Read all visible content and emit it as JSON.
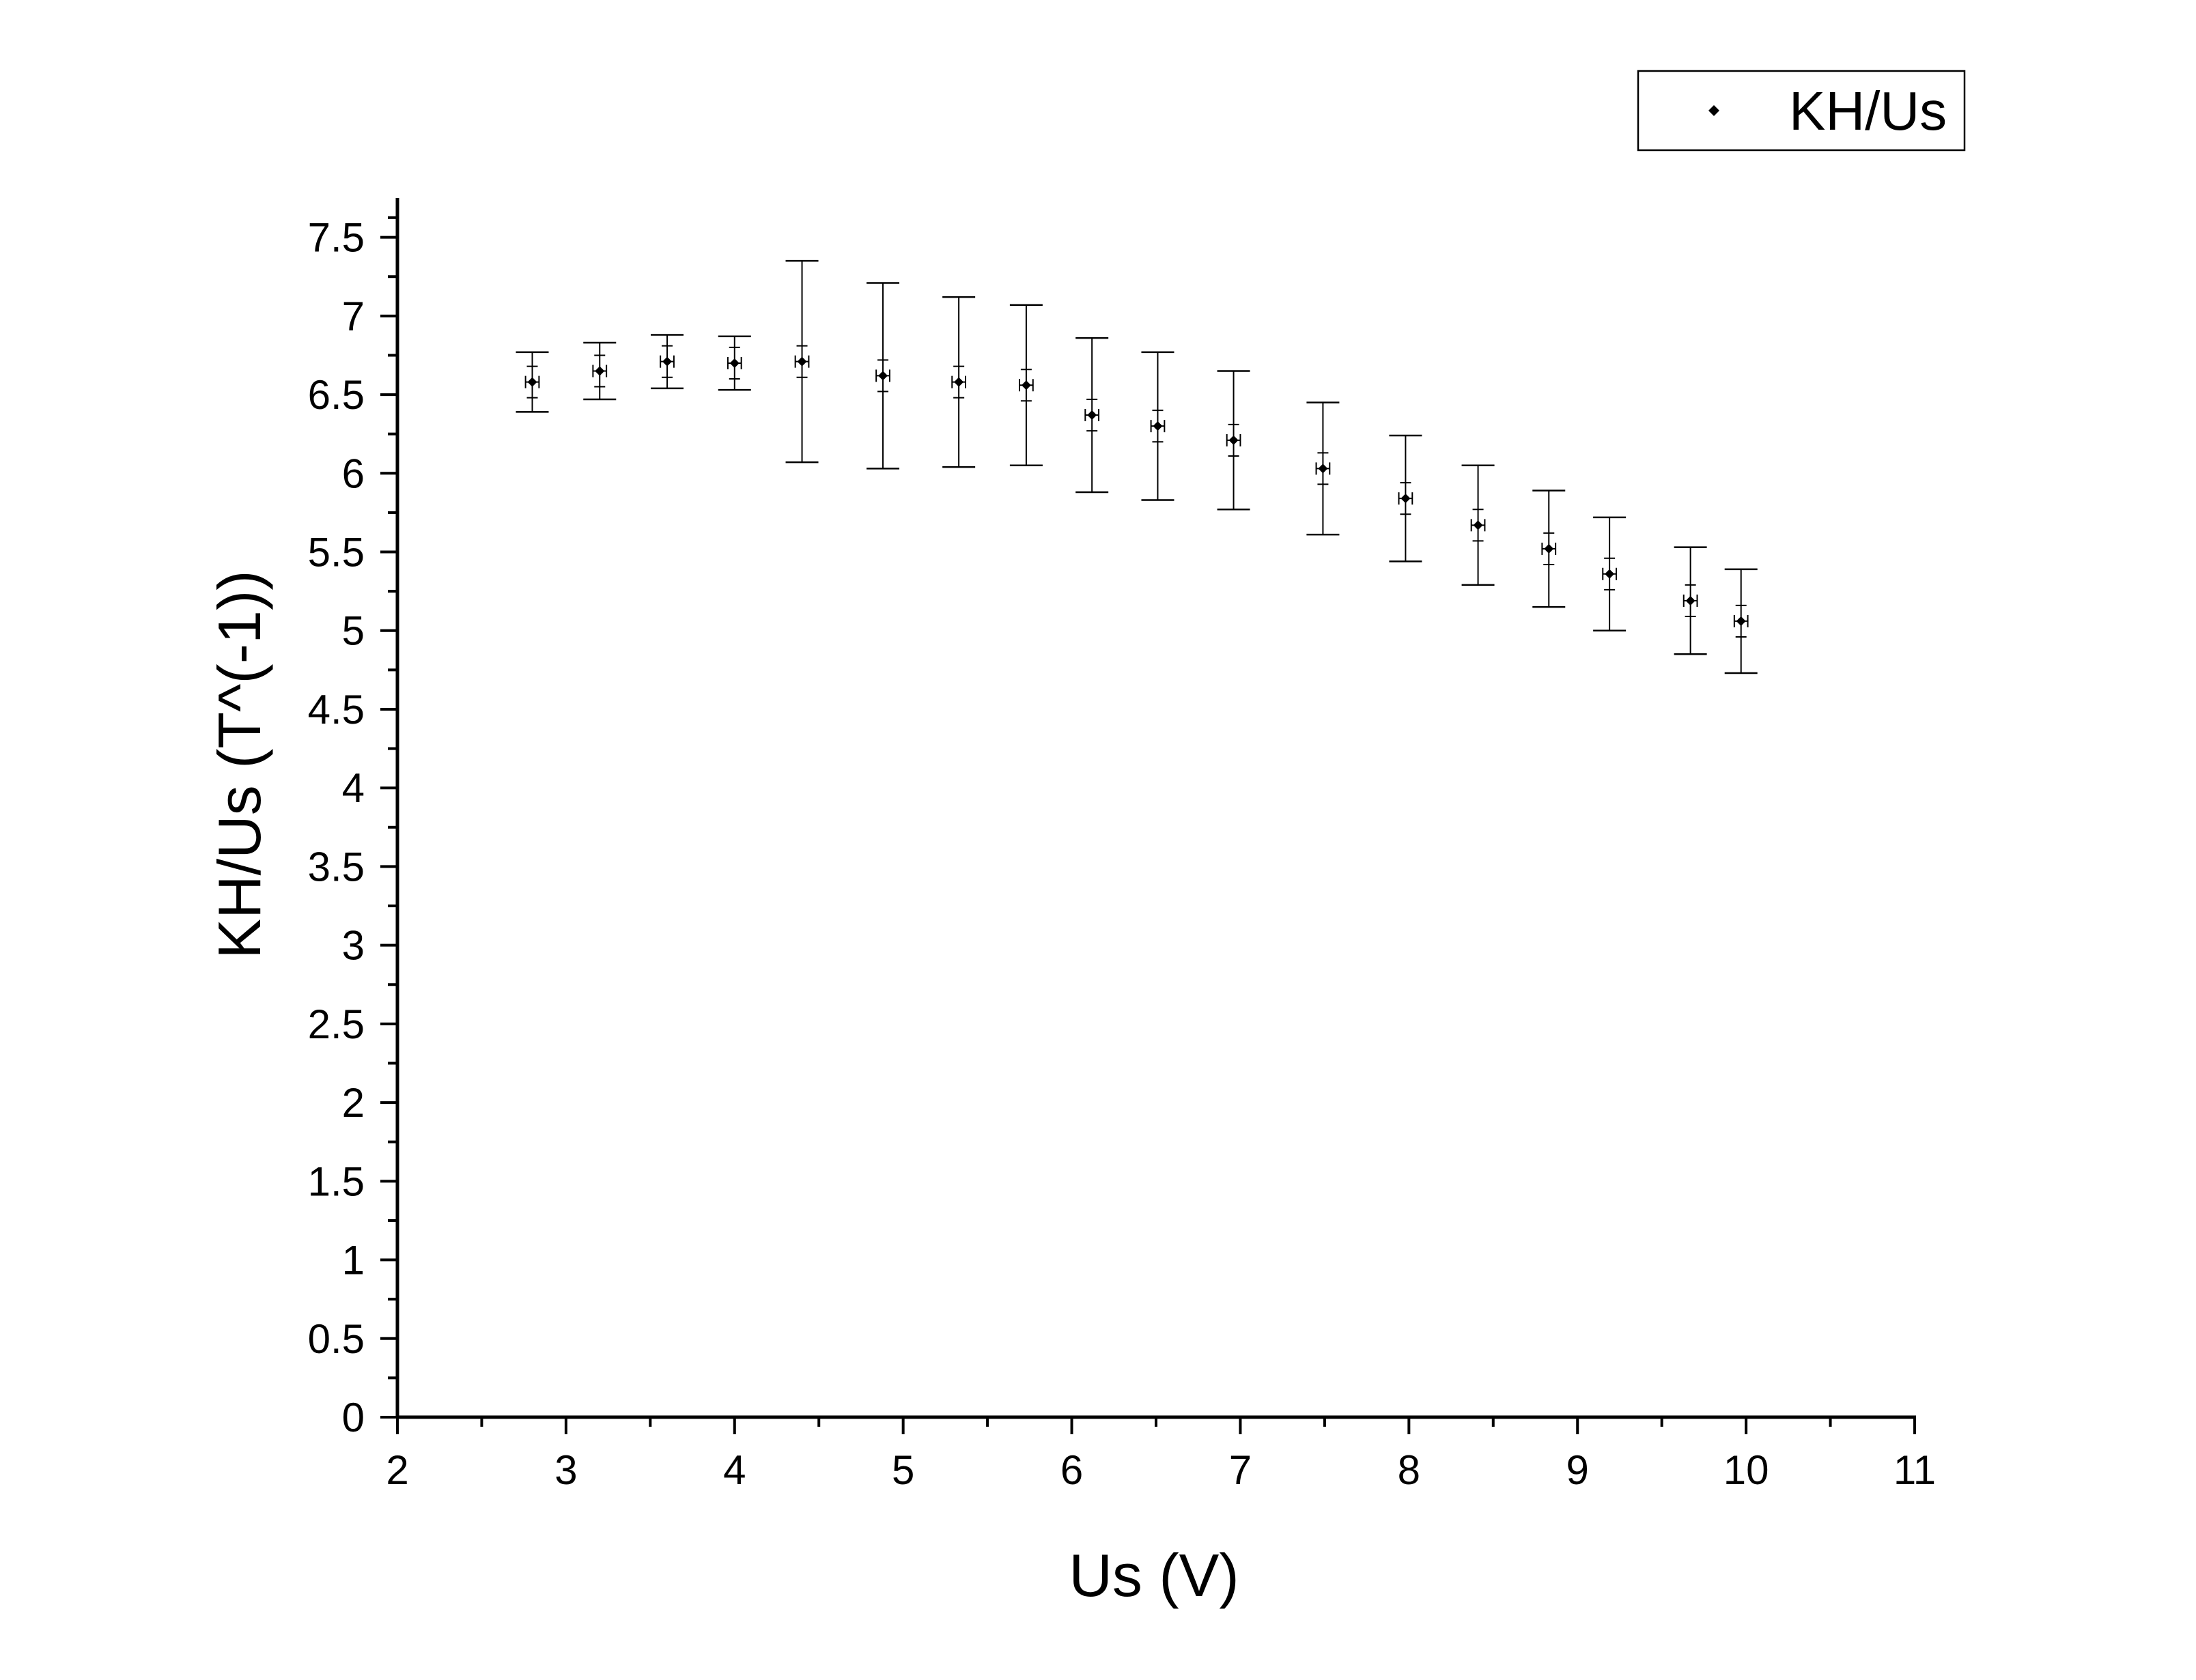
{
  "chart_data": {
    "type": "scatter",
    "xlabel": "Us (V)",
    "ylabel": "KH/Us (T^(-1))",
    "xlim": [
      2,
      11
    ],
    "ylim": [
      0,
      7.75
    ],
    "xticks": [
      2,
      3,
      4,
      5,
      6,
      7,
      8,
      9,
      10,
      11
    ],
    "xtick_labels": [
      "2",
      "3",
      "4",
      "5",
      "6",
      "7",
      "8",
      "9",
      "10",
      "11"
    ],
    "yticks": [
      0,
      0.5,
      1,
      1.5,
      2,
      2.5,
      3,
      3.5,
      4,
      4.5,
      5,
      5.5,
      6,
      6.5,
      7,
      7.5
    ],
    "ytick_labels": [
      "0",
      "0.5",
      "1",
      "1.5",
      "2",
      "2.5",
      "3",
      "3.5",
      "4",
      "4.5",
      "5",
      "5.5",
      "6",
      "6.5",
      "7",
      "7.5"
    ],
    "grid": false,
    "legend_position": "top-right",
    "series": [
      {
        "name": "KH/Us",
        "color": "#000000",
        "marker": "diamond",
        "x": [
          2.8,
          3.2,
          3.6,
          4.0,
          4.4,
          4.88,
          5.33,
          5.73,
          6.12,
          6.51,
          6.96,
          7.49,
          7.98,
          8.41,
          8.83,
          9.19,
          9.67,
          9.97
        ],
        "y": [
          6.58,
          6.65,
          6.71,
          6.7,
          6.71,
          6.62,
          6.58,
          6.56,
          6.37,
          6.3,
          6.21,
          6.03,
          5.84,
          5.67,
          5.52,
          5.36,
          5.19,
          5.06
        ],
        "yerr_big": [
          0.19,
          0.18,
          0.17,
          0.17,
          0.64,
          0.59,
          0.54,
          0.51,
          0.49,
          0.47,
          0.44,
          0.42,
          0.4,
          0.38,
          0.37,
          0.36,
          0.34,
          0.33
        ],
        "yerr_small": [
          0.1,
          0.1,
          0.1,
          0.1,
          0.1,
          0.1,
          0.1,
          0.1,
          0.1,
          0.1,
          0.1,
          0.1,
          0.1,
          0.1,
          0.1,
          0.1,
          0.1,
          0.1
        ],
        "xerr": [
          0.04,
          0.04,
          0.04,
          0.04,
          0.04,
          0.04,
          0.04,
          0.04,
          0.04,
          0.04,
          0.04,
          0.04,
          0.04,
          0.04,
          0.04,
          0.04,
          0.04,
          0.04
        ]
      }
    ]
  }
}
